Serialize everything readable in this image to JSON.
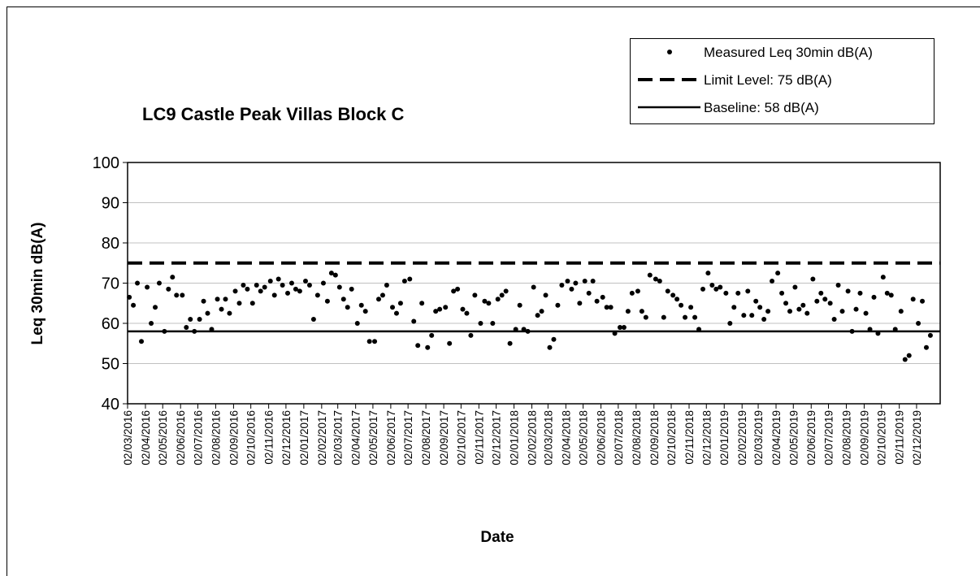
{
  "chart_data": {
    "type": "scatter",
    "title": "LC9 Castle Peak Villas Block C",
    "x_label": "Date",
    "y_label": "Leq 30min dB(A)",
    "xlim": [
      "2016-03-02",
      "2020-01-12"
    ],
    "ylim": [
      40,
      100
    ],
    "yticks": [
      40,
      50,
      60,
      70,
      80,
      90,
      100
    ],
    "grid": true,
    "legend": "top-right",
    "xticks": [
      {
        "value": "2016-03-02",
        "label": "02/03/2016"
      },
      {
        "value": "2016-04-02",
        "label": "02/04/2016"
      },
      {
        "value": "2016-05-02",
        "label": "02/05/2016"
      },
      {
        "value": "2016-06-02",
        "label": "02/06/2016"
      },
      {
        "value": "2016-07-02",
        "label": "02/07/2016"
      },
      {
        "value": "2016-08-02",
        "label": "02/08/2016"
      },
      {
        "value": "2016-09-02",
        "label": "02/09/2016"
      },
      {
        "value": "2016-10-02",
        "label": "02/10/2016"
      },
      {
        "value": "2016-11-02",
        "label": "02/11/2016"
      },
      {
        "value": "2016-12-02",
        "label": "02/12/2016"
      },
      {
        "value": "2017-01-02",
        "label": "02/01/2017"
      },
      {
        "value": "2017-02-02",
        "label": "02/02/2017"
      },
      {
        "value": "2017-03-02",
        "label": "02/03/2017"
      },
      {
        "value": "2017-04-02",
        "label": "02/04/2017"
      },
      {
        "value": "2017-05-02",
        "label": "02/05/2017"
      },
      {
        "value": "2017-06-02",
        "label": "02/06/2017"
      },
      {
        "value": "2017-07-02",
        "label": "02/07/2017"
      },
      {
        "value": "2017-08-02",
        "label": "02/08/2017"
      },
      {
        "value": "2017-09-02",
        "label": "02/09/2017"
      },
      {
        "value": "2017-10-02",
        "label": "02/10/2017"
      },
      {
        "value": "2017-11-02",
        "label": "02/11/2017"
      },
      {
        "value": "2017-12-02",
        "label": "02/12/2017"
      },
      {
        "value": "2018-01-02",
        "label": "02/01/2018"
      },
      {
        "value": "2018-02-02",
        "label": "02/02/2018"
      },
      {
        "value": "2018-03-02",
        "label": "02/03/2018"
      },
      {
        "value": "2018-04-02",
        "label": "02/04/2018"
      },
      {
        "value": "2018-05-02",
        "label": "02/05/2018"
      },
      {
        "value": "2018-06-02",
        "label": "02/06/2018"
      },
      {
        "value": "2018-07-02",
        "label": "02/07/2018"
      },
      {
        "value": "2018-08-02",
        "label": "02/08/2018"
      },
      {
        "value": "2018-09-02",
        "label": "02/09/2018"
      },
      {
        "value": "2018-10-02",
        "label": "02/10/2018"
      },
      {
        "value": "2018-11-02",
        "label": "02/11/2018"
      },
      {
        "value": "2018-12-02",
        "label": "02/12/2018"
      },
      {
        "value": "2019-01-02",
        "label": "02/01/2019"
      },
      {
        "value": "2019-02-02",
        "label": "02/02/2019"
      },
      {
        "value": "2019-03-02",
        "label": "02/03/2019"
      },
      {
        "value": "2019-04-02",
        "label": "02/04/2019"
      },
      {
        "value": "2019-05-02",
        "label": "02/05/2019"
      },
      {
        "value": "2019-06-02",
        "label": "02/06/2019"
      },
      {
        "value": "2019-07-02",
        "label": "02/07/2019"
      },
      {
        "value": "2019-08-02",
        "label": "02/08/2019"
      },
      {
        "value": "2019-09-02",
        "label": "02/09/2019"
      },
      {
        "value": "2019-10-02",
        "label": "02/10/2019"
      },
      {
        "value": "2019-11-02",
        "label": "02/11/2019"
      },
      {
        "value": "2019-12-02",
        "label": "02/12/2019"
      }
    ],
    "x": [
      "2016-03-05",
      "2016-03-12",
      "2016-03-19",
      "2016-03-26",
      "2016-04-05",
      "2016-04-12",
      "2016-04-19",
      "2016-04-26",
      "2016-05-05",
      "2016-05-12",
      "2016-05-19",
      "2016-05-26",
      "2016-06-05",
      "2016-06-12",
      "2016-06-19",
      "2016-06-26",
      "2016-07-05",
      "2016-07-12",
      "2016-07-19",
      "2016-07-26",
      "2016-08-05",
      "2016-08-12",
      "2016-08-19",
      "2016-08-26",
      "2016-09-05",
      "2016-09-12",
      "2016-09-19",
      "2016-09-26",
      "2016-10-05",
      "2016-10-12",
      "2016-10-19",
      "2016-10-26",
      "2016-11-05",
      "2016-11-12",
      "2016-11-19",
      "2016-11-26",
      "2016-12-05",
      "2016-12-12",
      "2016-12-19",
      "2016-12-26",
      "2017-01-05",
      "2017-01-12",
      "2017-01-19",
      "2017-01-26",
      "2017-02-05",
      "2017-02-12",
      "2017-02-19",
      "2017-02-26",
      "2017-03-05",
      "2017-03-12",
      "2017-03-19",
      "2017-03-26",
      "2017-04-05",
      "2017-04-12",
      "2017-04-19",
      "2017-04-26",
      "2017-05-05",
      "2017-05-12",
      "2017-05-19",
      "2017-05-26",
      "2017-06-05",
      "2017-06-12",
      "2017-06-19",
      "2017-06-26",
      "2017-07-05",
      "2017-07-12",
      "2017-07-19",
      "2017-07-26",
      "2017-08-05",
      "2017-08-12",
      "2017-08-19",
      "2017-08-26",
      "2017-09-05",
      "2017-09-12",
      "2017-09-19",
      "2017-09-26",
      "2017-10-05",
      "2017-10-12",
      "2017-10-19",
      "2017-10-26",
      "2017-11-05",
      "2017-11-12",
      "2017-11-19",
      "2017-11-26",
      "2017-12-05",
      "2017-12-12",
      "2017-12-19",
      "2017-12-26",
      "2018-01-05",
      "2018-01-12",
      "2018-01-19",
      "2018-01-26",
      "2018-02-05",
      "2018-02-12",
      "2018-02-19",
      "2018-02-26",
      "2018-03-05",
      "2018-03-12",
      "2018-03-19",
      "2018-03-26",
      "2018-04-05",
      "2018-04-12",
      "2018-04-19",
      "2018-04-26",
      "2018-05-05",
      "2018-05-12",
      "2018-05-19",
      "2018-05-26",
      "2018-06-05",
      "2018-06-12",
      "2018-06-19",
      "2018-06-26",
      "2018-07-05",
      "2018-07-12",
      "2018-07-19",
      "2018-07-26",
      "2018-08-05",
      "2018-08-12",
      "2018-08-19",
      "2018-08-26",
      "2018-09-05",
      "2018-09-12",
      "2018-09-19",
      "2018-09-26",
      "2018-10-05",
      "2018-10-12",
      "2018-10-19",
      "2018-10-26",
      "2018-11-05",
      "2018-11-12",
      "2018-11-19",
      "2018-11-26",
      "2018-12-05",
      "2018-12-12",
      "2018-12-19",
      "2018-12-26",
      "2019-01-05",
      "2019-01-12",
      "2019-01-19",
      "2019-01-26",
      "2019-02-05",
      "2019-02-12",
      "2019-02-19",
      "2019-02-26",
      "2019-03-05",
      "2019-03-12",
      "2019-03-19",
      "2019-03-26",
      "2019-04-05",
      "2019-04-12",
      "2019-04-19",
      "2019-04-26",
      "2019-05-05",
      "2019-05-12",
      "2019-05-19",
      "2019-05-26",
      "2019-06-05",
      "2019-06-12",
      "2019-06-19",
      "2019-06-26",
      "2019-07-05",
      "2019-07-12",
      "2019-07-19",
      "2019-07-26",
      "2019-08-05",
      "2019-08-12",
      "2019-08-19",
      "2019-08-26",
      "2019-09-05",
      "2019-09-12",
      "2019-09-19",
      "2019-09-26",
      "2019-10-05",
      "2019-10-12",
      "2019-10-19",
      "2019-10-26",
      "2019-11-05",
      "2019-11-12",
      "2019-11-19",
      "2019-11-26",
      "2019-12-05",
      "2019-12-12",
      "2019-12-19",
      "2019-12-26"
    ],
    "series": [
      {
        "name": "Measured Leq 30min dB(A)",
        "color": "#000000",
        "values": [
          66.5,
          64.5,
          70,
          55.5,
          69,
          60,
          64,
          70,
          58,
          68.5,
          71.5,
          67,
          67,
          59,
          61,
          58,
          61,
          65.5,
          62.5,
          58.5,
          66,
          63.5,
          66,
          62.5,
          68,
          65,
          69.5,
          68.5,
          65,
          69.5,
          68,
          69,
          70.5,
          67,
          71,
          69.5,
          67.5,
          70,
          68.5,
          68,
          70.5,
          69.5,
          61,
          67,
          70,
          65.5,
          72.5,
          72,
          69,
          66,
          64,
          68.5,
          60,
          64.5,
          63,
          55.5,
          55.5,
          66,
          67,
          69.5,
          64,
          62.5,
          65,
          70.5,
          71,
          60.5,
          54.5,
          65,
          54,
          57,
          63,
          63.5,
          64,
          55,
          68,
          68.5,
          63.5,
          62.5,
          57,
          67,
          60,
          65.5,
          65,
          60,
          66,
          67,
          68,
          55,
          58.5,
          64.5,
          58.5,
          58,
          69,
          62,
          63,
          67,
          54,
          56,
          64.5,
          69.5,
          70.5,
          68.5,
          70,
          65,
          70.5,
          67.5,
          70.5,
          65.5,
          66.5,
          64,
          64,
          57.5,
          59,
          59,
          63,
          67.5,
          68,
          63,
          61.5,
          72,
          71,
          70.5,
          61.5,
          68,
          67,
          66,
          64.5,
          61.5,
          64,
          61.5,
          58.5,
          68.5,
          72.5,
          69.5,
          68.5,
          69,
          67.5,
          60,
          64,
          67.5,
          62,
          68,
          62,
          65.5,
          64,
          61,
          63,
          70.5,
          72.5,
          67.5,
          65,
          63,
          69,
          63.5,
          64.5,
          62.5,
          71,
          65.5,
          67.5,
          66,
          65,
          61,
          69.5,
          63,
          68,
          58,
          63.5,
          67.5,
          62.5,
          58.5,
          66.5,
          57.5,
          71.5,
          67.5,
          67,
          58.5,
          63,
          51,
          52,
          66,
          60,
          65.5,
          54,
          57
        ]
      }
    ],
    "reference_lines": [
      {
        "name": "Limit Level: 75 dB(A)",
        "value": 75,
        "style": "dashed",
        "color": "#000000"
      },
      {
        "name": "Baseline: 58 dB(A)",
        "value": 58,
        "style": "solid",
        "color": "#000000"
      }
    ]
  }
}
